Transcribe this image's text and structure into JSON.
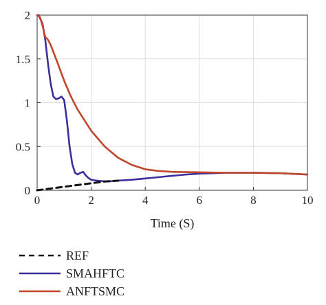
{
  "chart_data": {
    "type": "line",
    "title": "",
    "xlabel": "Time (S)",
    "ylabel": "",
    "xlim": [
      0,
      10
    ],
    "ylim": [
      0,
      2
    ],
    "xticks": [
      0,
      2,
      4,
      6,
      8,
      10
    ],
    "xtick_labels": [
      "0",
      "2",
      "4",
      "6",
      "8",
      "10"
    ],
    "yticks": [
      0,
      0.5,
      1,
      1.5,
      2
    ],
    "ytick_labels": [
      "0",
      "0.5",
      "1",
      "1.5",
      "2"
    ],
    "grid": true,
    "legend_position": "below",
    "series": [
      {
        "name": "REF",
        "color": "#111111",
        "style": "dashed",
        "x": [
          0,
          0.5,
          1,
          1.5,
          2,
          2.5,
          3
        ],
        "y": [
          0,
          0.02,
          0.04,
          0.06,
          0.08,
          0.1,
          0.11
        ]
      },
      {
        "name": "SMAHFTC",
        "color": "#3a2f9c",
        "style": "solid",
        "x": [
          0,
          0.05,
          0.1,
          0.2,
          0.3,
          0.4,
          0.5,
          0.6,
          0.7,
          0.8,
          0.9,
          1.0,
          1.1,
          1.2,
          1.3,
          1.4,
          1.5,
          1.6,
          1.7,
          1.8,
          1.9,
          2.0,
          2.2,
          2.4,
          2.6,
          2.8,
          3.0,
          3.5,
          4.0,
          4.5,
          5.0,
          5.5,
          6.0,
          7.0,
          8.0,
          9.0,
          10.0
        ],
        "y": [
          2.0,
          2.0,
          1.97,
          1.9,
          1.72,
          1.45,
          1.22,
          1.07,
          1.04,
          1.05,
          1.07,
          1.03,
          0.8,
          0.5,
          0.3,
          0.2,
          0.18,
          0.2,
          0.21,
          0.17,
          0.14,
          0.12,
          0.11,
          0.105,
          0.1,
          0.105,
          0.11,
          0.12,
          0.135,
          0.15,
          0.165,
          0.18,
          0.19,
          0.2,
          0.2,
          0.195,
          0.18
        ]
      },
      {
        "name": "ANFTSMC",
        "color": "#c0462a",
        "style": "solid",
        "x": [
          0,
          0.1,
          0.2,
          0.3,
          0.4,
          0.5,
          0.75,
          1.0,
          1.25,
          1.5,
          2.0,
          2.5,
          3.0,
          3.5,
          4.0,
          4.5,
          5.0,
          6.0,
          7.0,
          8.0,
          9.0,
          10.0
        ],
        "y": [
          2.0,
          1.98,
          1.88,
          1.75,
          1.72,
          1.66,
          1.46,
          1.25,
          1.07,
          0.92,
          0.68,
          0.5,
          0.37,
          0.29,
          0.24,
          0.22,
          0.21,
          0.205,
          0.2,
          0.2,
          0.195,
          0.18
        ]
      }
    ]
  }
}
